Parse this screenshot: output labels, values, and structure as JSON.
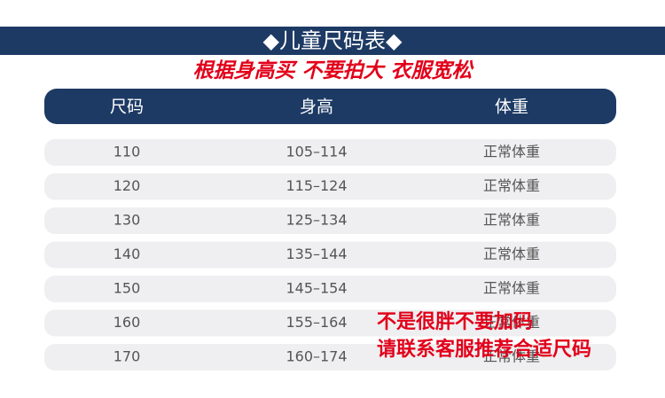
{
  "header": {
    "title": "◆儿童尺码表◆",
    "subtitle": "根据身高买 不要拍大 衣服宽松"
  },
  "table": {
    "columns": [
      "尺码",
      "身高",
      "体重"
    ],
    "rows": [
      [
        "110",
        "105–114",
        "正常体重"
      ],
      [
        "120",
        "115–124",
        "正常体重"
      ],
      [
        "130",
        "125–134",
        "正常体重"
      ],
      [
        "140",
        "135–144",
        "正常体重"
      ],
      [
        "150",
        "145–154",
        "正常体重"
      ],
      [
        "160",
        "155–164",
        "正常体重"
      ],
      [
        "170",
        "160–174",
        "正常体重"
      ]
    ]
  },
  "note": [
    "不是很胖不要加码",
    "请联系客服推荐合适尺码"
  ]
}
